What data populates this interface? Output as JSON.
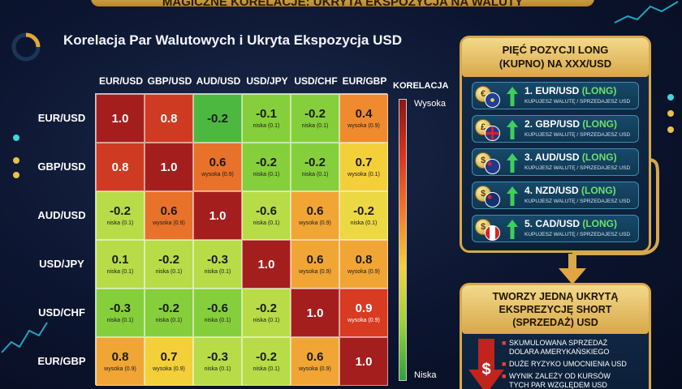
{
  "banner_text": "MAGICZNE KORELACJE: UKRYTA EKSPOZYCJA NA WALUTY",
  "heading": "Korelacja Par Walutowych i Ukryta Ekspozycja USD",
  "chart_data": {
    "type": "heatmap",
    "title": "Korelacja Par Walutowych i Ukryta Ekspozycja USD",
    "columns": [
      "EUR/USD",
      "GBP/USD",
      "AUD/USD",
      "USD/JPY",
      "USD/CHF",
      "EUR/GBP"
    ],
    "rows": [
      "EUR/USD",
      "GBP/USD",
      "AUD/USD",
      "USD/JPY",
      "USD/CHF",
      "EUR/GBP"
    ],
    "values": [
      [
        1.0,
        0.8,
        -0.2,
        -0.1,
        -0.2,
        0.4
      ],
      [
        0.8,
        1.0,
        0.6,
        -0.2,
        -0.2,
        0.7
      ],
      [
        -0.2,
        0.6,
        1.0,
        -0.6,
        0.6,
        -0.2
      ],
      [
        0.1,
        -0.2,
        -0.3,
        1.0,
        0.6,
        0.8
      ],
      [
        -0.3,
        -0.2,
        -0.6,
        -0.2,
        1.0,
        0.9
      ],
      [
        0.8,
        0.7,
        -0.3,
        -0.2,
        0.6,
        1.0
      ]
    ],
    "value_labels": [
      [
        "1.0",
        "0.8",
        "-0.2",
        "-0.1",
        "-0.2",
        "0.4"
      ],
      [
        "0.8",
        "1.0",
        "0.6",
        "-0.2",
        "-0.2",
        "0.7"
      ],
      [
        "-0.2",
        "0.6",
        "1.0",
        "-0.6",
        "0.6",
        "-0.2"
      ],
      [
        "0.1",
        "-0.2",
        "-0.3",
        "1.0",
        "0.6",
        "0.8"
      ],
      [
        "-0.3",
        "-0.2",
        "-0.6",
        "-0.2",
        "1.0",
        "0.9"
      ],
      [
        "0.8",
        "0.7",
        "-0.3",
        "-0.2",
        "0.6",
        "1.0"
      ]
    ],
    "sublabels": [
      [
        "",
        "",
        "",
        "niska (0.1)",
        "niska (0.1)",
        "wysoka (0.9)"
      ],
      [
        "",
        "",
        "wysoka (0.9)",
        "niska (0.1)",
        "niska (0.1)",
        "wysoka (0.1)"
      ],
      [
        "niska (0.1)",
        "wysoka (0.9)",
        "",
        "niska (0.1)",
        "wysoka (0.9)",
        "niska (0.1)"
      ],
      [
        "niska (0.1)",
        "niska (0.1)",
        "niska (0.1)",
        "",
        "wysoka (0.9)",
        "wysoka (0.9)"
      ],
      [
        "niska (0.1)",
        "niska (0.1)",
        "niska (0.1)",
        "niska (0.1)",
        "",
        "wysoka (0.9)"
      ],
      [
        "wysoka (0.9)",
        "wysoka (0.9)",
        "niska (0.1)",
        "niska (0.1)",
        "wysoka (0.9)",
        ""
      ]
    ],
    "colors": [
      [
        "#a51e1e",
        "#cf3a22",
        "#4cb83f",
        "#86cf3c",
        "#86cf3c",
        "#f08a2e"
      ],
      [
        "#cf3a22",
        "#a51e1e",
        "#e8722a",
        "#86cf3c",
        "#86cf3c",
        "#f3cf3a"
      ],
      [
        "#b7dc48",
        "#e8722a",
        "#a51e1e",
        "#b7dc48",
        "#f0a535",
        "#ecd843"
      ],
      [
        "#b7dc48",
        "#b7dc48",
        "#b7dc48",
        "#a51e1e",
        "#f0a535",
        "#f0a535"
      ],
      [
        "#86cf3c",
        "#86cf3c",
        "#86cf3c",
        "#b7dc48",
        "#a51e1e",
        "#d83a22"
      ],
      [
        "#f0a535",
        "#f3cf3a",
        "#b7dc48",
        "#b7dc48",
        "#f0a535",
        "#a51e1e"
      ]
    ],
    "legend": {
      "title": "KORELACJA",
      "high_label": "Wysoka",
      "low_label": "Niska"
    }
  },
  "long_panel": {
    "title_line1": "PIĘĆ POZYCJI LONG",
    "title_line2": "(KUPNO) NA XXX/USD",
    "positions": [
      {
        "coin": "€",
        "pair": "1. EUR/USD",
        "long": "(LONG)",
        "sub": "KUPUJESZ WALUTĘ / SPRZEDAJESZ USD"
      },
      {
        "coin": "£",
        "pair": "2. GBP/USD",
        "long": "(LONG)",
        "sub": "KUPUJESZ WALUTĘ / SPRZEDAJESZ USD"
      },
      {
        "coin": "$",
        "pair": "3. AUD/USD",
        "long": "(LONG)",
        "sub": "KUPUJESZ WALUTĘ / SPRZEDAJESZ USD"
      },
      {
        "coin": "$",
        "pair": "4. NZD/USD",
        "long": "(LONG)",
        "sub": "KUPUJESZ WALUTĘ / SPRZEDAJESZ USD"
      },
      {
        "coin": "$",
        "pair": "5. CAD/USD",
        "long": "(LONG)",
        "sub": "KUPUJESZ WALUTĘ / SPRZEDAJESZ USD"
      }
    ]
  },
  "short_panel": {
    "title_line1": "TWORZY JEDNĄ UKRYTĄ",
    "title_line2": "EKSPREZYCJĘ SHORT",
    "title_line3": "(SPRZEDAŻ) USD",
    "bullets": [
      "SKUMULOWANA SPRZEDAŻ\nDOLARA AMERYKAŃSKIEGO",
      "DUŻE RYZYKO UMOCNIENIA USD",
      "WYNIK ZALEŻY OD KURSÓW\nTYCH PAR WZGLĘDEM USD"
    ]
  },
  "colors": {
    "gold": "#d8a84a",
    "navy": "#0c1530",
    "long_green": "#6fe06a"
  }
}
